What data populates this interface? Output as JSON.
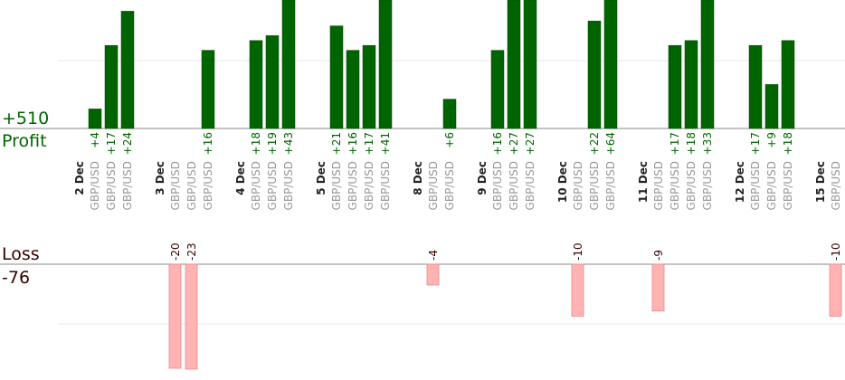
{
  "summary": {
    "profit_total": "+510",
    "profit_label": "Profit",
    "loss_label": "Loss",
    "loss_total": "-76"
  },
  "colors": {
    "profit_bar": "#006400",
    "loss_bar": "#ffb3b3",
    "profit_text": "#006400",
    "loss_text": "#330000",
    "axis": "#888888",
    "grid": "#e8e8e8"
  },
  "chart_data": {
    "type": "bar",
    "grid": true,
    "days": [
      {
        "label": "2 Dec",
        "trades": [
          {
            "pair": "GBP/USD",
            "value": 4
          },
          {
            "pair": "GBP/USD",
            "value": 17
          },
          {
            "pair": "GBP/USD",
            "value": 24
          }
        ]
      },
      {
        "label": "3 Dec",
        "trades": [
          {
            "pair": "GBP/USD",
            "value": -20
          },
          {
            "pair": "GBP/USD",
            "value": -23
          },
          {
            "pair": "GBP/USD",
            "value": 16
          }
        ]
      },
      {
        "label": "4 Dec",
        "trades": [
          {
            "pair": "GBP/USD",
            "value": 18
          },
          {
            "pair": "GBP/USD",
            "value": 19
          },
          {
            "pair": "GBP/USD",
            "value": 43
          }
        ]
      },
      {
        "label": "5 Dec",
        "trades": [
          {
            "pair": "GBP/USD",
            "value": 21
          },
          {
            "pair": "GBP/USD",
            "value": 16
          },
          {
            "pair": "GBP/USD",
            "value": 17
          },
          {
            "pair": "GBP/USD",
            "value": 41
          }
        ]
      },
      {
        "label": "8 Dec",
        "trades": [
          {
            "pair": "GBP/USD",
            "value": -4
          },
          {
            "pair": "GBP/USD",
            "value": 6
          }
        ]
      },
      {
        "label": "9 Dec",
        "trades": [
          {
            "pair": "GBP/USD",
            "value": 16
          },
          {
            "pair": "GBP/USD",
            "value": 27
          },
          {
            "pair": "GBP/USD",
            "value": 27
          }
        ]
      },
      {
        "label": "10 Dec",
        "trades": [
          {
            "pair": "GBP/USD",
            "value": -10
          },
          {
            "pair": "GBP/USD",
            "value": 22
          },
          {
            "pair": "GBP/USD",
            "value": 64
          }
        ]
      },
      {
        "label": "11 Dec",
        "trades": [
          {
            "pair": "GBP/USD",
            "value": -9
          },
          {
            "pair": "GBP/USD",
            "value": 17
          },
          {
            "pair": "GBP/USD",
            "value": 18
          },
          {
            "pair": "GBP/USD",
            "value": 33
          }
        ]
      },
      {
        "label": "12 Dec",
        "trades": [
          {
            "pair": "GBP/USD",
            "value": 17
          },
          {
            "pair": "GBP/USD",
            "value": 9
          },
          {
            "pair": "GBP/USD",
            "value": 18
          }
        ]
      },
      {
        "label": "15 Dec",
        "trades": [
          {
            "pair": "GBP/USD",
            "value": -10
          }
        ]
      }
    ]
  }
}
